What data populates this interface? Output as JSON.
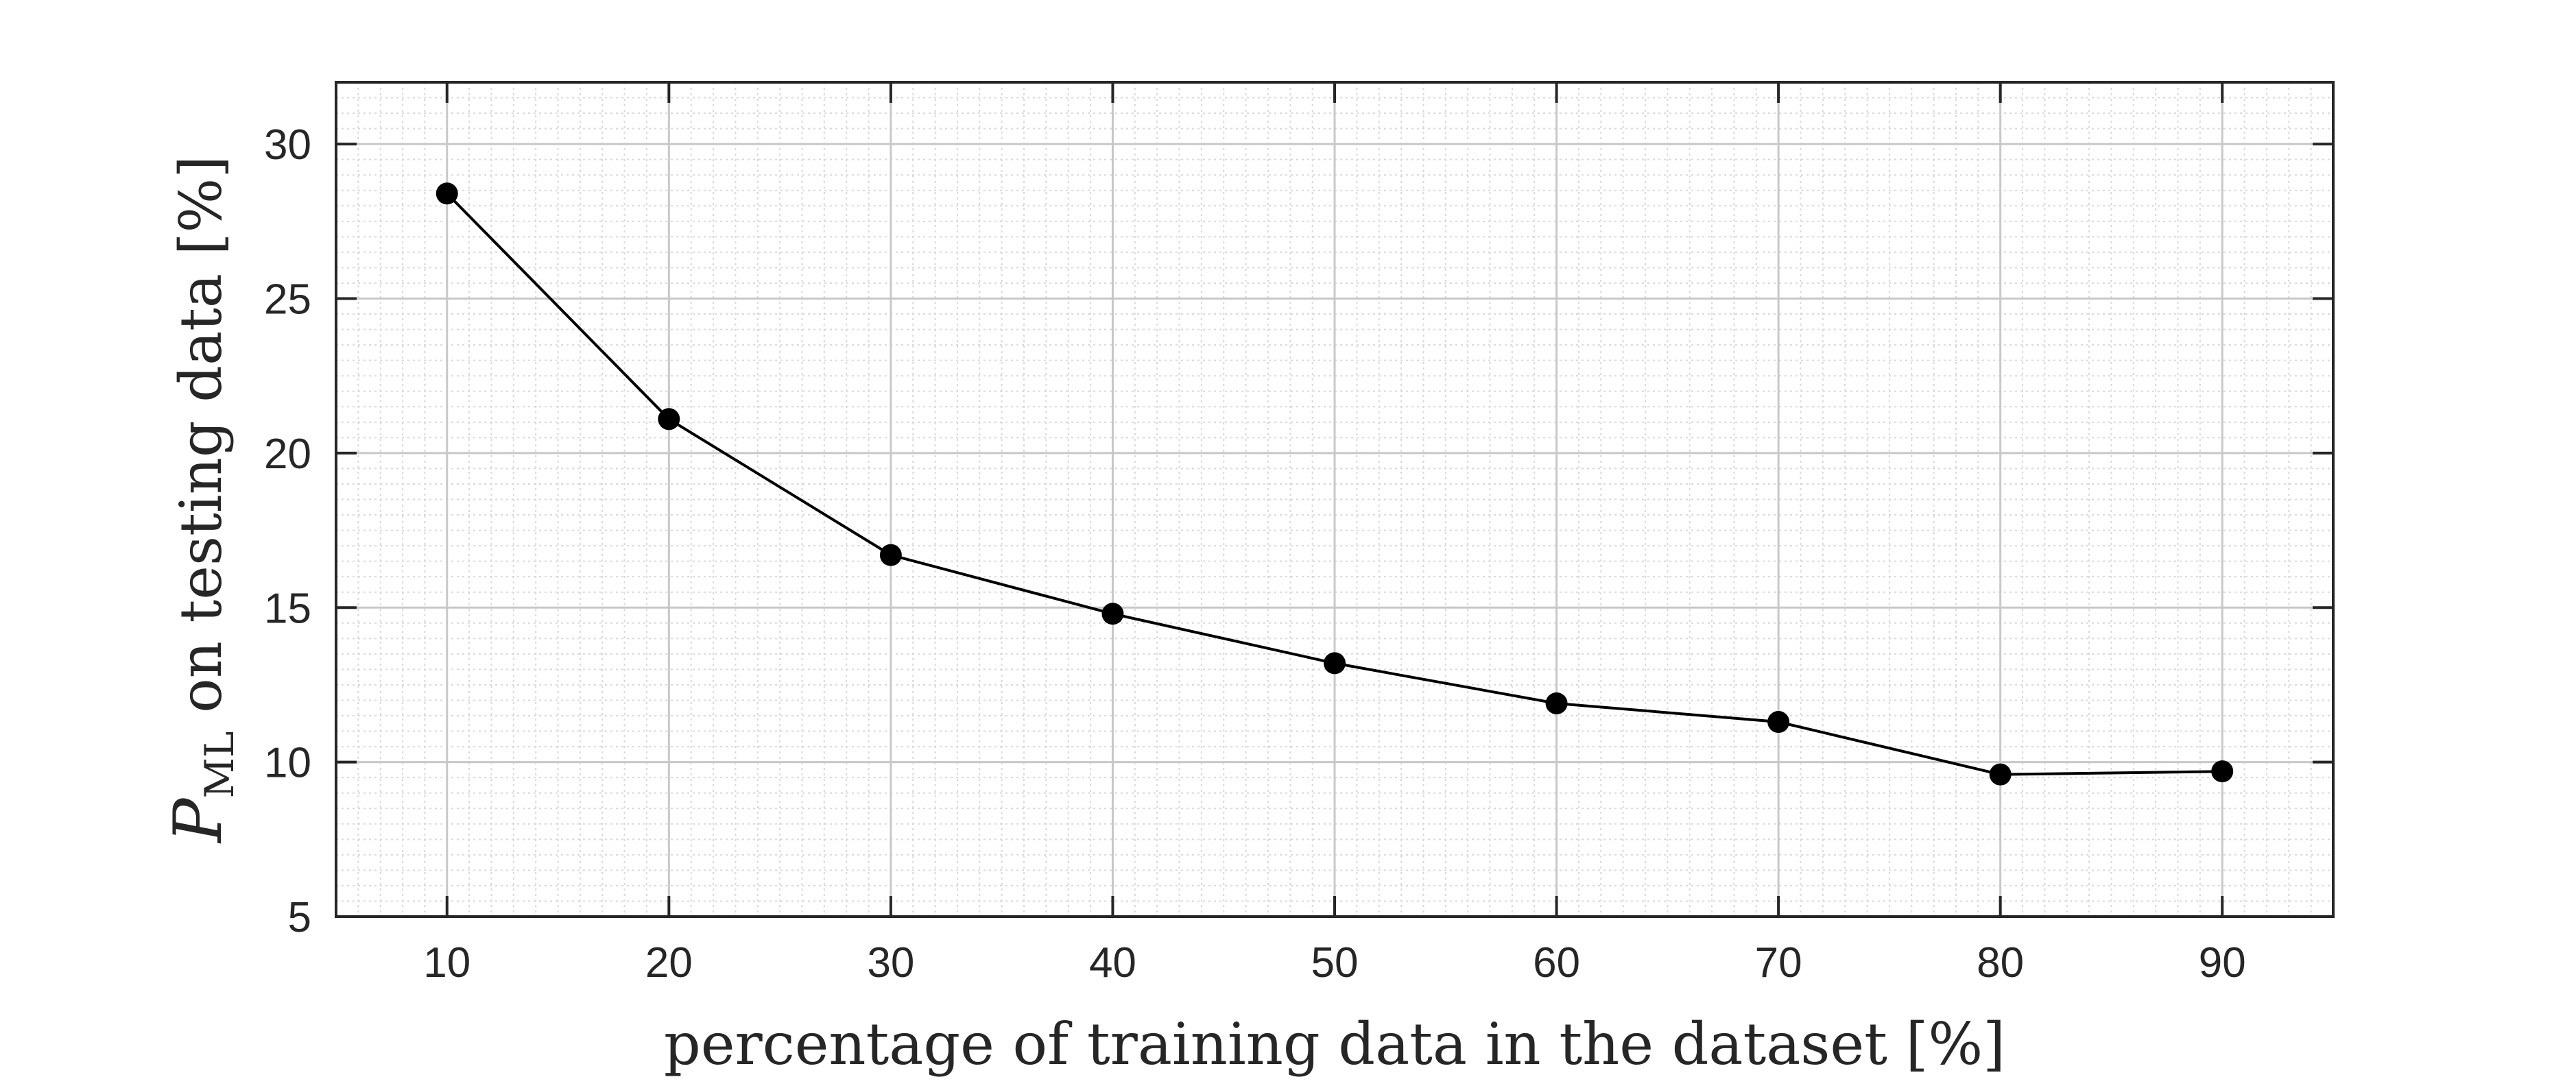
{
  "chart_data": {
    "type": "line",
    "x": [
      10,
      20,
      30,
      40,
      50,
      60,
      70,
      80,
      90
    ],
    "series": [
      {
        "values": [
          28.4,
          21.1,
          16.7,
          14.8,
          13.2,
          11.9,
          11.3,
          9.6,
          9.7
        ]
      }
    ],
    "xlabel": "percentage of training data in the dataset [%]",
    "ylabel_symbol": "P",
    "ylabel_subscript": "ML",
    "ylabel_rest": " on testing data [%]",
    "xlim": [
      5,
      95
    ],
    "ylim": [
      5,
      32
    ],
    "xticks": [
      10,
      20,
      30,
      40,
      50,
      60,
      70,
      80,
      90
    ],
    "yticks": [
      5,
      10,
      15,
      20,
      25,
      30
    ],
    "grid": true,
    "minor_grid": true,
    "markers": "filled-circle",
    "line_color": "#000000",
    "marker_color": "#000000",
    "axis_color": "#262626",
    "major_grid_color": "#c8c8c8",
    "minor_grid_color": "#d9d9d9"
  }
}
